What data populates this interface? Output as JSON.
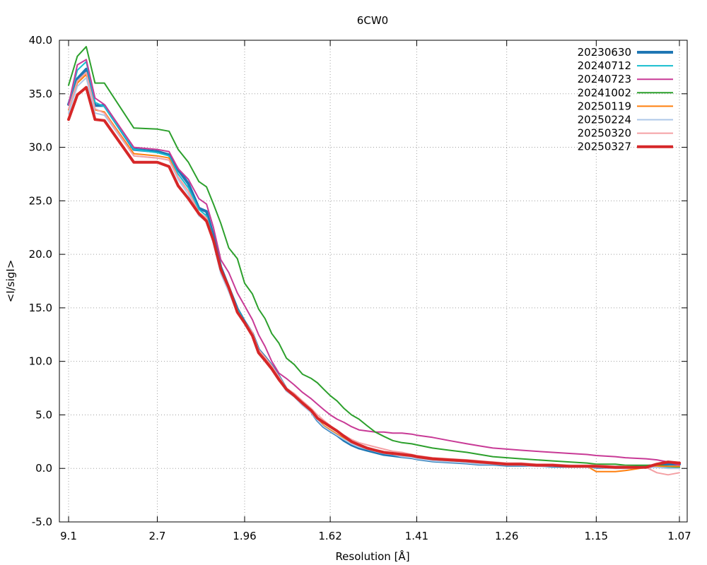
{
  "chart_data": {
    "type": "line",
    "title": "6CW0",
    "xlabel": "Resolution [Å]",
    "ylabel": "<I/sigI>",
    "ylim": [
      -5.0,
      40.0
    ],
    "yticks": [
      "-5.0",
      "0.0",
      "5.0",
      "10.0",
      "15.0",
      "20.0",
      "25.0",
      "30.0",
      "35.0",
      "40.0"
    ],
    "xticks": [
      "9.1",
      "2.7",
      "1.96",
      "1.62",
      "1.41",
      "1.26",
      "1.15",
      "1.07"
    ],
    "grid": true,
    "legend_position": "top-right",
    "series": [
      {
        "name": "20230630",
        "color": "#1f77b4",
        "width": 4,
        "x": [
          9.1,
          6.4,
          5.2,
          4.5,
          4.0,
          3.1,
          2.7,
          2.55,
          2.45,
          2.35,
          2.26,
          2.2,
          2.15,
          2.1,
          2.05,
          2.0,
          1.96,
          1.92,
          1.89,
          1.86,
          1.83,
          1.8,
          1.77,
          1.74,
          1.71,
          1.68,
          1.66,
          1.64,
          1.62,
          1.6,
          1.58,
          1.56,
          1.54,
          1.52,
          1.5,
          1.48,
          1.46,
          1.44,
          1.42,
          1.41,
          1.38,
          1.35,
          1.32,
          1.3,
          1.28,
          1.26,
          1.24,
          1.22,
          1.2,
          1.18,
          1.16,
          1.15,
          1.13,
          1.12,
          1.1,
          1.09,
          1.08,
          1.07
        ],
        "y": [
          34.0,
          36.4,
          37.3,
          33.9,
          33.9,
          29.8,
          29.6,
          29.3,
          27.9,
          26.6,
          24.3,
          24.0,
          21.7,
          18.8,
          16.9,
          14.9,
          13.7,
          12.6,
          11.1,
          10.4,
          9.6,
          8.6,
          7.4,
          6.8,
          6.0,
          5.3,
          4.5,
          3.9,
          3.5,
          3.1,
          2.6,
          2.2,
          1.9,
          1.7,
          1.5,
          1.3,
          1.2,
          1.1,
          1.0,
          0.9,
          0.7,
          0.6,
          0.5,
          0.4,
          0.4,
          0.3,
          0.3,
          0.3,
          0.2,
          0.2,
          0.2,
          0.1,
          0.1,
          0.1,
          0.2,
          0.3,
          0.4,
          0.4
        ]
      },
      {
        "name": "20240712",
        "color": "#17becf",
        "width": 2,
        "x": [
          9.1,
          6.4,
          5.2,
          4.5,
          4.0,
          3.1,
          2.7,
          2.55,
          2.45,
          2.35,
          2.26,
          2.2,
          2.15,
          2.1,
          2.05,
          2.0,
          1.96,
          1.92,
          1.89,
          1.86,
          1.83,
          1.8,
          1.77,
          1.74,
          1.71,
          1.68,
          1.66,
          1.64,
          1.62,
          1.6,
          1.58,
          1.56,
          1.54,
          1.52,
          1.5,
          1.48,
          1.46,
          1.44,
          1.42,
          1.41,
          1.38,
          1.35,
          1.32,
          1.3,
          1.28,
          1.26,
          1.24,
          1.22,
          1.2,
          1.18,
          1.16,
          1.15,
          1.13,
          1.12,
          1.1,
          1.09,
          1.08,
          1.07
        ],
        "y": [
          34.0,
          37.2,
          38.0,
          34.2,
          33.8,
          29.8,
          29.5,
          29.2,
          27.5,
          26.2,
          24.2,
          23.6,
          21.5,
          18.7,
          16.8,
          14.9,
          13.7,
          12.6,
          11.1,
          10.4,
          9.6,
          8.6,
          7.5,
          6.9,
          6.1,
          5.4,
          4.6,
          4.0,
          3.6,
          3.2,
          2.7,
          2.3,
          2.0,
          1.8,
          1.6,
          1.4,
          1.3,
          1.2,
          1.1,
          1.0,
          0.8,
          0.7,
          0.6,
          0.5,
          0.5,
          0.4,
          0.4,
          0.3,
          0.3,
          0.3,
          0.2,
          0.2,
          0.2,
          0.2,
          0.2,
          0.2,
          0.1,
          0.1
        ]
      },
      {
        "name": "20240723",
        "color": "#c83a96",
        "width": 2,
        "x": [
          9.1,
          6.4,
          5.2,
          4.5,
          4.0,
          3.1,
          2.7,
          2.55,
          2.45,
          2.35,
          2.26,
          2.2,
          2.15,
          2.1,
          2.05,
          2.0,
          1.96,
          1.92,
          1.89,
          1.86,
          1.83,
          1.8,
          1.77,
          1.74,
          1.71,
          1.68,
          1.66,
          1.64,
          1.62,
          1.6,
          1.58,
          1.56,
          1.54,
          1.52,
          1.5,
          1.48,
          1.46,
          1.44,
          1.42,
          1.41,
          1.38,
          1.35,
          1.32,
          1.3,
          1.28,
          1.26,
          1.24,
          1.22,
          1.2,
          1.18,
          1.16,
          1.15,
          1.13,
          1.12,
          1.1,
          1.09,
          1.08,
          1.07
        ],
        "y": [
          34.0,
          37.7,
          38.2,
          34.6,
          34.0,
          30.0,
          29.8,
          29.6,
          28.0,
          27.0,
          25.2,
          24.7,
          22.5,
          19.5,
          18.3,
          16.4,
          15.2,
          13.9,
          12.5,
          11.4,
          10.0,
          8.9,
          8.4,
          7.8,
          7.1,
          6.5,
          6.0,
          5.5,
          5.0,
          4.6,
          4.3,
          3.9,
          3.6,
          3.5,
          3.4,
          3.4,
          3.3,
          3.3,
          3.2,
          3.1,
          2.9,
          2.6,
          2.3,
          2.1,
          1.9,
          1.8,
          1.7,
          1.6,
          1.5,
          1.4,
          1.3,
          1.2,
          1.1,
          1.0,
          0.9,
          0.8,
          0.6,
          0.3
        ]
      },
      {
        "name": "20241002",
        "color": "#2ca02c",
        "width": 2,
        "x": [
          9.1,
          6.4,
          5.2,
          4.5,
          4.0,
          3.1,
          2.7,
          2.55,
          2.45,
          2.35,
          2.26,
          2.2,
          2.15,
          2.1,
          2.05,
          2.0,
          1.96,
          1.92,
          1.89,
          1.86,
          1.83,
          1.8,
          1.77,
          1.74,
          1.71,
          1.68,
          1.66,
          1.64,
          1.62,
          1.6,
          1.58,
          1.56,
          1.54,
          1.52,
          1.5,
          1.48,
          1.46,
          1.44,
          1.42,
          1.41,
          1.38,
          1.35,
          1.32,
          1.3,
          1.28,
          1.26,
          1.24,
          1.22,
          1.2,
          1.18,
          1.16,
          1.15,
          1.13,
          1.12,
          1.1,
          1.09,
          1.08,
          1.07
        ],
        "y": [
          35.8,
          38.5,
          39.4,
          36.0,
          36.0,
          31.8,
          31.7,
          31.5,
          29.8,
          28.6,
          26.8,
          26.3,
          24.7,
          22.9,
          20.6,
          19.6,
          17.3,
          16.3,
          14.9,
          14.0,
          12.6,
          11.7,
          10.3,
          9.7,
          8.8,
          8.4,
          8.0,
          7.4,
          6.8,
          6.3,
          5.6,
          5.0,
          4.6,
          4.0,
          3.4,
          3.0,
          2.6,
          2.4,
          2.3,
          2.2,
          1.9,
          1.7,
          1.5,
          1.3,
          1.1,
          1.0,
          0.9,
          0.8,
          0.7,
          0.6,
          0.5,
          0.4,
          0.4,
          0.3,
          0.3,
          0.3,
          0.2,
          0.1
        ]
      },
      {
        "name": "20250119",
        "color": "#ff7f0e",
        "width": 2,
        "x": [
          9.1,
          6.4,
          5.2,
          4.5,
          4.0,
          3.1,
          2.7,
          2.55,
          2.45,
          2.35,
          2.26,
          2.2,
          2.15,
          2.1,
          2.05,
          2.0,
          1.96,
          1.92,
          1.89,
          1.86,
          1.83,
          1.8,
          1.77,
          1.74,
          1.71,
          1.68,
          1.66,
          1.64,
          1.62,
          1.6,
          1.58,
          1.56,
          1.54,
          1.52,
          1.5,
          1.48,
          1.46,
          1.44,
          1.42,
          1.41,
          1.38,
          1.35,
          1.32,
          1.3,
          1.28,
          1.26,
          1.24,
          1.22,
          1.2,
          1.18,
          1.16,
          1.15,
          1.13,
          1.12,
          1.1,
          1.09,
          1.08,
          1.07
        ],
        "y": [
          33.5,
          36.0,
          36.8,
          33.5,
          33.3,
          29.4,
          29.2,
          29.0,
          27.2,
          25.9,
          23.9,
          23.4,
          21.2,
          18.4,
          16.7,
          14.7,
          13.6,
          12.5,
          11.0,
          10.2,
          9.4,
          8.4,
          7.3,
          6.8,
          6.0,
          5.3,
          4.6,
          4.0,
          3.6,
          3.2,
          2.8,
          2.4,
          2.1,
          1.9,
          1.7,
          1.5,
          1.4,
          1.2,
          1.1,
          1.0,
          0.8,
          0.7,
          0.6,
          0.5,
          0.5,
          0.4,
          0.4,
          0.3,
          0.3,
          0.2,
          0.2,
          -0.3,
          -0.3,
          -0.2,
          0.1,
          0.2,
          0.2,
          0.2
        ]
      },
      {
        "name": "20250224",
        "color": "#aec7e8",
        "width": 2,
        "x": [
          9.1,
          6.4,
          5.2,
          4.5,
          4.0,
          3.1,
          2.7,
          2.55,
          2.45,
          2.35,
          2.26,
          2.2,
          2.15,
          2.1,
          2.05,
          2.0,
          1.96,
          1.92,
          1.89,
          1.86,
          1.83,
          1.8,
          1.77,
          1.74,
          1.71,
          1.68,
          1.66,
          1.64,
          1.62,
          1.6,
          1.58,
          1.56,
          1.54,
          1.52,
          1.5,
          1.48,
          1.46,
          1.44,
          1.42,
          1.41,
          1.38,
          1.35,
          1.32,
          1.3,
          1.28,
          1.26,
          1.24,
          1.22,
          1.2,
          1.18,
          1.16,
          1.15,
          1.13,
          1.12,
          1.1,
          1.09,
          1.08,
          1.07
        ],
        "y": [
          33.2,
          35.7,
          36.5,
          33.2,
          33.0,
          29.2,
          29.0,
          28.8,
          27.0,
          25.6,
          23.6,
          23.1,
          21.0,
          18.2,
          16.5,
          14.5,
          13.5,
          12.4,
          10.9,
          10.1,
          9.3,
          8.3,
          7.2,
          6.7,
          5.9,
          5.2,
          4.5,
          3.9,
          3.5,
          3.1,
          2.7,
          2.3,
          2.0,
          1.8,
          1.6,
          1.4,
          1.3,
          1.1,
          1.0,
          0.9,
          0.7,
          0.6,
          0.5,
          0.4,
          0.4,
          0.3,
          0.3,
          0.2,
          0.2,
          0.2,
          0.1,
          0.1,
          0.0,
          0.0,
          0.1,
          0.1,
          0.0,
          0.0
        ]
      },
      {
        "name": "20250320",
        "color": "#f4a0a4",
        "width": 2,
        "x": [
          9.1,
          6.4,
          5.2,
          4.5,
          4.0,
          3.1,
          2.7,
          2.55,
          2.45,
          2.35,
          2.26,
          2.2,
          2.15,
          2.1,
          2.05,
          2.0,
          1.96,
          1.92,
          1.89,
          1.86,
          1.83,
          1.8,
          1.77,
          1.74,
          1.71,
          1.68,
          1.66,
          1.64,
          1.62,
          1.6,
          1.58,
          1.56,
          1.54,
          1.52,
          1.5,
          1.48,
          1.46,
          1.44,
          1.42,
          1.41,
          1.38,
          1.35,
          1.32,
          1.3,
          1.28,
          1.26,
          1.24,
          1.22,
          1.2,
          1.18,
          1.16,
          1.15,
          1.13,
          1.12,
          1.1,
          1.09,
          1.08,
          1.07
        ],
        "y": [
          33.6,
          36.2,
          37.0,
          33.6,
          33.2,
          29.2,
          29.0,
          28.8,
          27.2,
          25.9,
          23.9,
          23.4,
          21.3,
          18.5,
          16.7,
          14.7,
          13.7,
          12.7,
          11.1,
          10.4,
          9.6,
          8.6,
          7.5,
          7.0,
          6.3,
          5.6,
          5.0,
          4.5,
          4.0,
          3.5,
          3.1,
          2.7,
          2.4,
          2.2,
          2.0,
          1.8,
          1.6,
          1.5,
          1.3,
          1.2,
          1.0,
          0.9,
          0.8,
          0.7,
          0.6,
          0.5,
          0.5,
          0.4,
          0.4,
          0.3,
          0.3,
          0.3,
          0.2,
          0.2,
          0.1,
          -0.4,
          -0.6,
          -0.4
        ]
      },
      {
        "name": "20250327",
        "color": "#d62728",
        "width": 4,
        "x": [
          9.1,
          6.4,
          5.2,
          4.5,
          4.0,
          3.1,
          2.7,
          2.55,
          2.45,
          2.35,
          2.26,
          2.2,
          2.15,
          2.1,
          2.05,
          2.0,
          1.96,
          1.92,
          1.89,
          1.86,
          1.83,
          1.8,
          1.77,
          1.74,
          1.71,
          1.68,
          1.66,
          1.64,
          1.62,
          1.6,
          1.58,
          1.56,
          1.54,
          1.52,
          1.5,
          1.48,
          1.46,
          1.44,
          1.42,
          1.41,
          1.38,
          1.35,
          1.32,
          1.3,
          1.28,
          1.26,
          1.24,
          1.22,
          1.2,
          1.18,
          1.16,
          1.15,
          1.13,
          1.12,
          1.1,
          1.09,
          1.08,
          1.07
        ],
        "y": [
          32.6,
          34.9,
          35.6,
          32.6,
          32.5,
          28.6,
          28.6,
          28.2,
          26.4,
          25.2,
          23.8,
          23.1,
          21.3,
          18.6,
          16.9,
          14.6,
          13.6,
          12.4,
          10.8,
          10.1,
          9.3,
          8.3,
          7.4,
          6.8,
          6.1,
          5.4,
          4.7,
          4.3,
          3.9,
          3.5,
          3.0,
          2.5,
          2.2,
          1.9,
          1.7,
          1.5,
          1.4,
          1.3,
          1.2,
          1.1,
          0.9,
          0.8,
          0.7,
          0.6,
          0.5,
          0.4,
          0.4,
          0.3,
          0.3,
          0.2,
          0.2,
          0.2,
          0.1,
          0.1,
          0.1,
          0.4,
          0.6,
          0.5
        ]
      }
    ]
  }
}
